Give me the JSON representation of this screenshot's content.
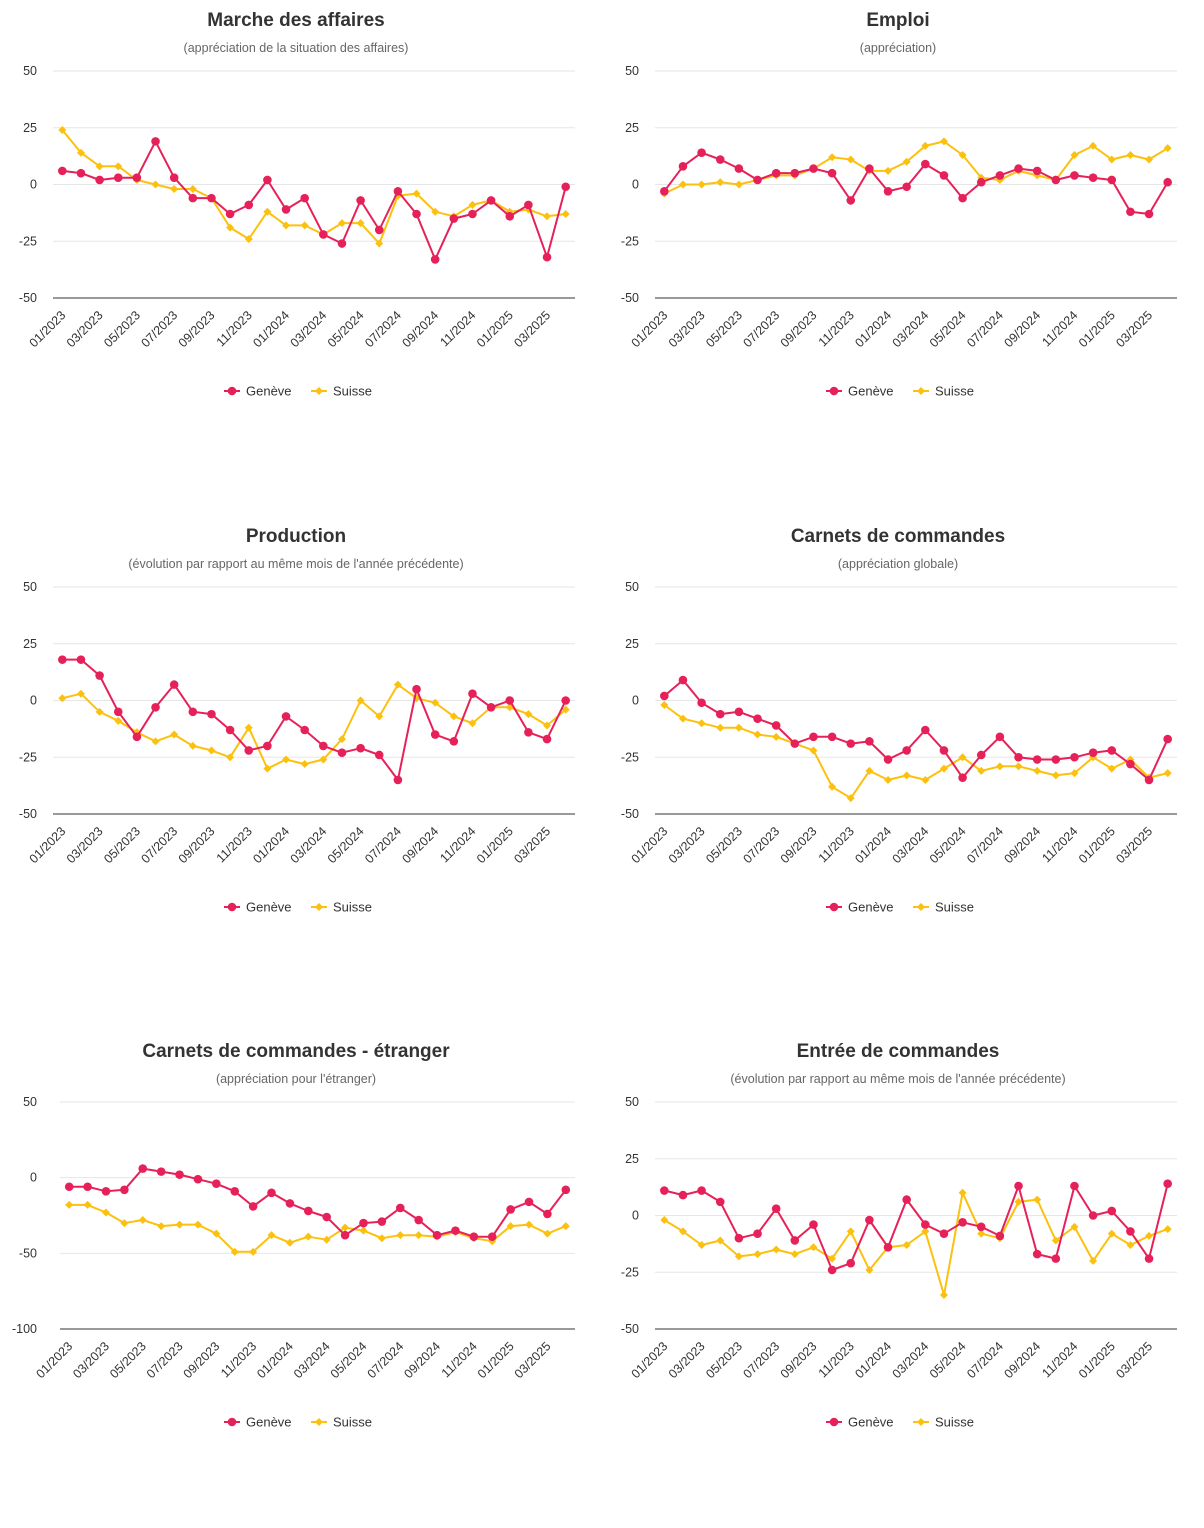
{
  "colors": {
    "geneve": "#e6215a",
    "suisse": "#fcc10e",
    "grid": "#e6e6e6",
    "axis": "#333333"
  },
  "chart_data": [
    {
      "type": "line",
      "title": "Marche des affaires",
      "subtitle": "(appréciation de la situation des affaires)",
      "x": [
        "01/2023",
        "02/2023",
        "03/2023",
        "04/2023",
        "05/2023",
        "06/2023",
        "07/2023",
        "08/2023",
        "09/2023",
        "10/2023",
        "11/2023",
        "12/2023",
        "01/2024",
        "02/2024",
        "03/2024",
        "04/2024",
        "05/2024",
        "06/2024",
        "07/2024",
        "08/2024",
        "09/2024",
        "10/2024",
        "11/2024",
        "12/2024",
        "01/2025",
        "02/2025",
        "03/2025",
        "04/2025"
      ],
      "x_tick_labels": [
        "01/2023",
        "03/2023",
        "05/2023",
        "07/2023",
        "09/2023",
        "11/2023",
        "01/2024",
        "03/2024",
        "05/2024",
        "07/2024",
        "09/2024",
        "11/2024",
        "01/2025",
        "03/2025"
      ],
      "ylim": [
        -50,
        50
      ],
      "y_ticks": [
        50,
        25,
        0,
        -25,
        -50
      ],
      "grid": true,
      "legend": "bottom-center",
      "series": [
        {
          "name": "Genève",
          "values": [
            6,
            5,
            2,
            3,
            3,
            19,
            3,
            -6,
            -6,
            -13,
            -9,
            2,
            -11,
            -6,
            -22,
            -26,
            -7,
            -20,
            -3,
            -13,
            -33,
            -15,
            -13,
            -7,
            -14,
            -9,
            -32,
            -1
          ]
        },
        {
          "name": "Suisse",
          "values": [
            24,
            14,
            8,
            8,
            2,
            0,
            -2,
            -2,
            -6,
            -19,
            -24,
            -12,
            -18,
            -18,
            -22,
            -17,
            -17,
            -26,
            -5,
            -4,
            -12,
            -14,
            -9,
            -7,
            -12,
            -11,
            -14,
            -13
          ]
        }
      ]
    },
    {
      "type": "line",
      "title": "Emploi",
      "subtitle": "(appréciation)",
      "x": [
        "01/2023",
        "02/2023",
        "03/2023",
        "04/2023",
        "05/2023",
        "06/2023",
        "07/2023",
        "08/2023",
        "09/2023",
        "10/2023",
        "11/2023",
        "12/2023",
        "01/2024",
        "02/2024",
        "03/2024",
        "04/2024",
        "05/2024",
        "06/2024",
        "07/2024",
        "08/2024",
        "09/2024",
        "10/2024",
        "11/2024",
        "12/2024",
        "01/2025",
        "02/2025",
        "03/2025",
        "04/2025"
      ],
      "x_tick_labels": [
        "01/2023",
        "03/2023",
        "05/2023",
        "07/2023",
        "09/2023",
        "11/2023",
        "01/2024",
        "03/2024",
        "05/2024",
        "07/2024",
        "09/2024",
        "11/2024",
        "01/2025",
        "03/2025"
      ],
      "ylim": [
        -50,
        50
      ],
      "y_ticks": [
        50,
        25,
        0,
        -25,
        -50
      ],
      "grid": true,
      "legend": "bottom-center",
      "series": [
        {
          "name": "Genève",
          "values": [
            -3,
            8,
            14,
            11,
            7,
            2,
            5,
            5,
            7,
            5,
            -7,
            7,
            -3,
            -1,
            9,
            4,
            -6,
            1,
            4,
            7,
            6,
            2,
            4,
            3,
            2,
            -12,
            -13,
            1
          ]
        },
        {
          "name": "Suisse",
          "values": [
            -4,
            0,
            0,
            1,
            0,
            2,
            4,
            4,
            7,
            12,
            11,
            6,
            6,
            10,
            17,
            19,
            13,
            3,
            2,
            6,
            4,
            2,
            13,
            17,
            11,
            13,
            11,
            16
          ]
        }
      ]
    },
    {
      "type": "line",
      "title": "Production",
      "subtitle": "(évolution par rapport au même mois de l'année précédente)",
      "x": [
        "01/2023",
        "02/2023",
        "03/2023",
        "04/2023",
        "05/2023",
        "06/2023",
        "07/2023",
        "08/2023",
        "09/2023",
        "10/2023",
        "11/2023",
        "12/2023",
        "01/2024",
        "02/2024",
        "03/2024",
        "04/2024",
        "05/2024",
        "06/2024",
        "07/2024",
        "08/2024",
        "09/2024",
        "10/2024",
        "11/2024",
        "12/2024",
        "01/2025",
        "02/2025",
        "03/2025",
        "04/2025"
      ],
      "x_tick_labels": [
        "01/2023",
        "03/2023",
        "05/2023",
        "07/2023",
        "09/2023",
        "11/2023",
        "01/2024",
        "03/2024",
        "05/2024",
        "07/2024",
        "09/2024",
        "11/2024",
        "01/2025",
        "03/2025"
      ],
      "ylim": [
        -50,
        50
      ],
      "y_ticks": [
        50,
        25,
        0,
        -25,
        -50
      ],
      "grid": true,
      "legend": "bottom-center",
      "series": [
        {
          "name": "Genève",
          "values": [
            18,
            18,
            11,
            -5,
            -16,
            -3,
            7,
            -5,
            -6,
            -13,
            -22,
            -20,
            -7,
            -13,
            -20,
            -23,
            -21,
            -24,
            -35,
            5,
            -15,
            -18,
            3,
            -3,
            0,
            -14,
            -17,
            0
          ]
        },
        {
          "name": "Suisse",
          "values": [
            1,
            3,
            -5,
            -9,
            -14,
            -18,
            -15,
            -20,
            -22,
            -25,
            -12,
            -30,
            -26,
            -28,
            -26,
            -17,
            0,
            -7,
            7,
            1,
            -1,
            -7,
            -10,
            -3,
            -3,
            -6,
            -11,
            -4
          ]
        }
      ]
    },
    {
      "type": "line",
      "title": "Carnets de commandes",
      "subtitle": "(appréciation globale)",
      "x": [
        "01/2023",
        "02/2023",
        "03/2023",
        "04/2023",
        "05/2023",
        "06/2023",
        "07/2023",
        "08/2023",
        "09/2023",
        "10/2023",
        "11/2023",
        "12/2023",
        "01/2024",
        "02/2024",
        "03/2024",
        "04/2024",
        "05/2024",
        "06/2024",
        "07/2024",
        "08/2024",
        "09/2024",
        "10/2024",
        "11/2024",
        "12/2024",
        "01/2025",
        "02/2025",
        "03/2025",
        "04/2025"
      ],
      "x_tick_labels": [
        "01/2023",
        "03/2023",
        "05/2023",
        "07/2023",
        "09/2023",
        "11/2023",
        "01/2024",
        "03/2024",
        "05/2024",
        "07/2024",
        "09/2024",
        "11/2024",
        "01/2025",
        "03/2025"
      ],
      "ylim": [
        -50,
        50
      ],
      "y_ticks": [
        50,
        25,
        0,
        -25,
        -50
      ],
      "grid": true,
      "legend": "bottom-center",
      "series": [
        {
          "name": "Genève",
          "values": [
            2,
            9,
            -1,
            -6,
            -5,
            -8,
            -11,
            -19,
            -16,
            -16,
            -19,
            -18,
            -26,
            -22,
            -13,
            -22,
            -34,
            -24,
            -16,
            -25,
            -26,
            -26,
            -25,
            -23,
            -22,
            -28,
            -35,
            -17
          ]
        },
        {
          "name": "Suisse",
          "values": [
            -2,
            -8,
            -10,
            -12,
            -12,
            -15,
            -16,
            -19,
            -22,
            -38,
            -43,
            -31,
            -35,
            -33,
            -35,
            -30,
            -25,
            -31,
            -29,
            -29,
            -31,
            -33,
            -32,
            -25,
            -30,
            -26,
            -34,
            -32
          ]
        }
      ]
    },
    {
      "type": "line",
      "title": "Carnets de commandes - étranger",
      "subtitle": "(appréciation pour l'étranger)",
      "x": [
        "01/2023",
        "02/2023",
        "03/2023",
        "04/2023",
        "05/2023",
        "06/2023",
        "07/2023",
        "08/2023",
        "09/2023",
        "10/2023",
        "11/2023",
        "12/2023",
        "01/2024",
        "02/2024",
        "03/2024",
        "04/2024",
        "05/2024",
        "06/2024",
        "07/2024",
        "08/2024",
        "09/2024",
        "10/2024",
        "11/2024",
        "12/2024",
        "01/2025",
        "02/2025",
        "03/2025",
        "04/2025"
      ],
      "x_tick_labels": [
        "01/2023",
        "03/2023",
        "05/2023",
        "07/2023",
        "09/2023",
        "11/2023",
        "01/2024",
        "03/2024",
        "05/2024",
        "07/2024",
        "09/2024",
        "11/2024",
        "01/2025",
        "03/2025"
      ],
      "ylim": [
        -100,
        50
      ],
      "y_ticks": [
        50,
        0,
        -50,
        -100
      ],
      "grid": true,
      "legend": "bottom-center",
      "series": [
        {
          "name": "Genève",
          "values": [
            -6,
            -6,
            -9,
            -8,
            6,
            4,
            2,
            -1,
            -4,
            -9,
            -19,
            -10,
            -17,
            -22,
            -26,
            -38,
            -30,
            -29,
            -20,
            -28,
            -38,
            -35,
            -39,
            -39,
            -21,
            -16,
            -24,
            -8
          ]
        },
        {
          "name": "Suisse",
          "values": [
            -18,
            -18,
            -23,
            -30,
            -28,
            -32,
            -31,
            -31,
            -37,
            -49,
            -49,
            -38,
            -43,
            -39,
            -41,
            -33,
            -35,
            -40,
            -38,
            -38,
            -39,
            -36,
            -40,
            -42,
            -32,
            -31,
            -37,
            -32
          ]
        }
      ]
    },
    {
      "type": "line",
      "title": "Entrée de commandes",
      "subtitle": "(évolution par rapport au même mois de l'année précédente)",
      "x": [
        "01/2023",
        "02/2023",
        "03/2023",
        "04/2023",
        "05/2023",
        "06/2023",
        "07/2023",
        "08/2023",
        "09/2023",
        "10/2023",
        "11/2023",
        "12/2023",
        "01/2024",
        "02/2024",
        "03/2024",
        "04/2024",
        "05/2024",
        "06/2024",
        "07/2024",
        "08/2024",
        "09/2024",
        "10/2024",
        "11/2024",
        "12/2024",
        "01/2025",
        "02/2025",
        "03/2025",
        "04/2025"
      ],
      "x_tick_labels": [
        "01/2023",
        "03/2023",
        "05/2023",
        "07/2023",
        "09/2023",
        "11/2023",
        "01/2024",
        "03/2024",
        "05/2024",
        "07/2024",
        "09/2024",
        "11/2024",
        "01/2025",
        "03/2025"
      ],
      "ylim": [
        -50,
        50
      ],
      "y_ticks": [
        50,
        25,
        0,
        -25,
        -50
      ],
      "grid": true,
      "legend": "bottom-center",
      "series": [
        {
          "name": "Genève",
          "values": [
            11,
            9,
            11,
            6,
            -10,
            -8,
            3,
            -11,
            -4,
            -24,
            -21,
            -2,
            -14,
            7,
            -4,
            -8,
            -3,
            -5,
            -9,
            13,
            -17,
            -19,
            13,
            0,
            2,
            -7,
            -19,
            14
          ]
        },
        {
          "name": "Suisse",
          "values": [
            -2,
            -7,
            -13,
            -11,
            -18,
            -17,
            -15,
            -17,
            -14,
            -19,
            -7,
            -24,
            -14,
            -13,
            -7,
            -35,
            10,
            -8,
            -10,
            6,
            7,
            -11,
            -5,
            -20,
            -8,
            -13,
            -9,
            -6
          ]
        }
      ]
    }
  ]
}
